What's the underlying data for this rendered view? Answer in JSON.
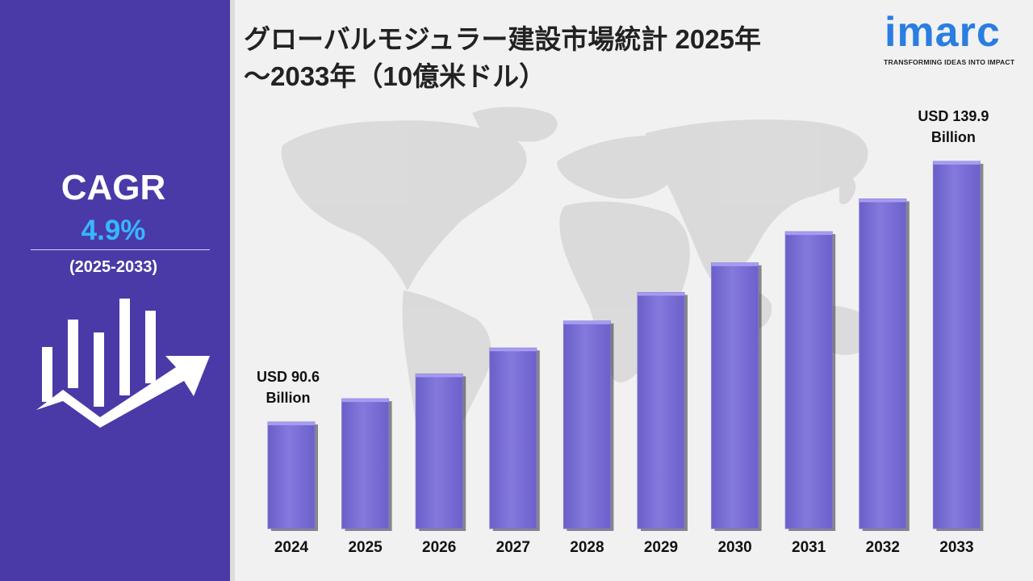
{
  "title": {
    "line1": "グローバルモジュラー建設市場統計 2025年",
    "line2": "～2033年（10億米ドル）"
  },
  "logo": {
    "wordmark": "imarc",
    "tagline": "TRANSFORMING IDEAS INTO IMPACT"
  },
  "sidebar": {
    "cagr_label": "CAGR",
    "cagr_value": "4.9%",
    "period": "(2025-2033)",
    "icon": "growth-chart-arrow-icon"
  },
  "colors": {
    "sidebar": "#4a3aa8",
    "bar": "#7f74d8",
    "cagr_value": "#38b6ff",
    "logo": "#2a7de1"
  },
  "chart_data": {
    "type": "bar",
    "categories": [
      "2024",
      "2025",
      "2026",
      "2027",
      "2028",
      "2029",
      "2030",
      "2031",
      "2032",
      "2033"
    ],
    "values": [
      90.6,
      95.0,
      99.7,
      104.6,
      109.7,
      115.1,
      120.7,
      126.6,
      132.8,
      139.9
    ],
    "units": "10億米ドル",
    "annotations": [
      {
        "category": "2024",
        "line1": "USD 90.6",
        "line2": "Billion"
      },
      {
        "category": "2033",
        "line1": "USD 139.9",
        "line2": "Billion"
      }
    ],
    "grid": false,
    "legend": "none"
  }
}
